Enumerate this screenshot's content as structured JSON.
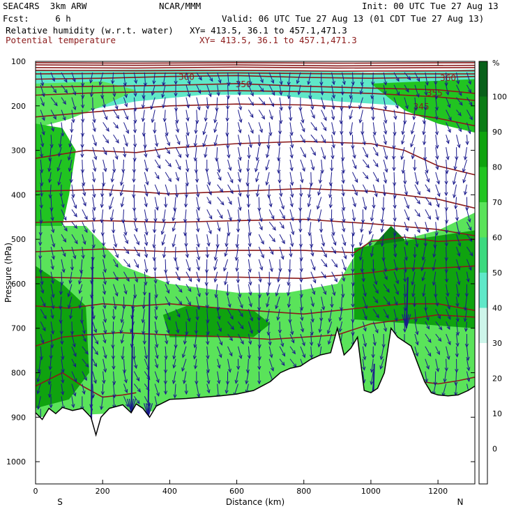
{
  "header": {
    "model": "SEAC4RS  3km ARW",
    "org": "NCAR/MMM",
    "init": "Init: 00 UTC Tue 27 Aug 13",
    "fcst": "Fcst:     6 h",
    "valid": "Valid: 06 UTC Tue 27 Aug 13 (01 CDT Tue 27 Aug 13)",
    "field1": "Relative humidity (w.r.t. water)",
    "field1_xy": "XY= 413.5, 36.1 to 457.1,471.3",
    "field2": "Potential temperature",
    "field2_xy": "XY= 413.5, 36.1 to 457.1,471.3"
  },
  "colors": {
    "theta_contour": "#8b1a1a",
    "wind_vectors": "#1a1a8c",
    "rh_scale": [
      "#ffffff",
      "#ffffff",
      "#ffffff",
      "#ffffff",
      "#cdf5ea",
      "#5fe8c8",
      "#3cd97f",
      "#5ae35a",
      "#21c421",
      "#0fa30f",
      "#0b7c16",
      "#08601a"
    ]
  },
  "chart_data": {
    "type": "heatmap",
    "description_free": true,
    "xlabel": "Distance (km)",
    "ylabel": "Pressure (hPa)",
    "xlim": [
      0,
      1310
    ],
    "ylim": [
      1050,
      100
    ],
    "x_ticks": [
      0,
      200,
      400,
      600,
      800,
      1000,
      1200
    ],
    "y_ticks": [
      100,
      200,
      300,
      400,
      500,
      600,
      700,
      800,
      900,
      1000
    ],
    "x_end_labels": {
      "left": "S",
      "right": "N"
    },
    "colorbar_unit": "%",
    "colorbar_ticks": [
      0,
      10,
      20,
      30,
      40,
      50,
      60,
      70,
      80,
      90,
      100
    ],
    "contour_labels": [
      "360",
      "350",
      "360",
      "355",
      "345"
    ],
    "terrain_pressure": [
      [
        0,
        890
      ],
      [
        20,
        905
      ],
      [
        40,
        880
      ],
      [
        60,
        892
      ],
      [
        80,
        878
      ],
      [
        110,
        885
      ],
      [
        140,
        880
      ],
      [
        165,
        900
      ],
      [
        180,
        940
      ],
      [
        195,
        900
      ],
      [
        220,
        880
      ],
      [
        260,
        872
      ],
      [
        285,
        890
      ],
      [
        300,
        870
      ],
      [
        320,
        880
      ],
      [
        340,
        900
      ],
      [
        360,
        875
      ],
      [
        400,
        860
      ],
      [
        450,
        858
      ],
      [
        500,
        855
      ],
      [
        550,
        852
      ],
      [
        600,
        848
      ],
      [
        650,
        840
      ],
      [
        700,
        820
      ],
      [
        730,
        800
      ],
      [
        760,
        790
      ],
      [
        790,
        785
      ],
      [
        820,
        770
      ],
      [
        850,
        760
      ],
      [
        880,
        755
      ],
      [
        900,
        700
      ],
      [
        920,
        760
      ],
      [
        940,
        745
      ],
      [
        960,
        720
      ],
      [
        980,
        840
      ],
      [
        1000,
        845
      ],
      [
        1020,
        835
      ],
      [
        1040,
        800
      ],
      [
        1060,
        700
      ],
      [
        1080,
        720
      ],
      [
        1100,
        730
      ],
      [
        1120,
        740
      ],
      [
        1140,
        780
      ],
      [
        1160,
        820
      ],
      [
        1180,
        845
      ],
      [
        1200,
        850
      ],
      [
        1230,
        852
      ],
      [
        1260,
        850
      ],
      [
        1290,
        840
      ],
      [
        1310,
        830
      ]
    ],
    "theta_contours": [
      {
        "label": "",
        "points": [
          [
            0,
            103
          ],
          [
            300,
            104
          ],
          [
            600,
            103
          ],
          [
            900,
            104
          ],
          [
            1310,
            103
          ]
        ]
      },
      {
        "label": "",
        "points": [
          [
            0,
            108
          ],
          [
            300,
            109
          ],
          [
            600,
            108
          ],
          [
            900,
            110
          ],
          [
            1310,
            109
          ]
        ]
      },
      {
        "label": "",
        "points": [
          [
            0,
            114
          ],
          [
            300,
            115
          ],
          [
            600,
            113
          ],
          [
            900,
            115
          ],
          [
            1310,
            114
          ]
        ]
      },
      {
        "label": "",
        "points": [
          [
            0,
            120
          ],
          [
            300,
            121
          ],
          [
            600,
            120
          ],
          [
            900,
            122
          ],
          [
            1310,
            121
          ]
        ]
      },
      {
        "label": "",
        "points": [
          [
            0,
            128
          ],
          [
            300,
            127
          ],
          [
            600,
            126
          ],
          [
            900,
            128
          ],
          [
            1310,
            128
          ]
        ]
      },
      {
        "label": "360",
        "points": [
          [
            0,
            140
          ],
          [
            200,
            138
          ],
          [
            400,
            134
          ],
          [
            600,
            132
          ],
          [
            800,
            136
          ],
          [
            1000,
            138
          ],
          [
            1200,
            136
          ],
          [
            1310,
            134
          ]
        ]
      },
      {
        "label": "350",
        "points": [
          [
            0,
            158
          ],
          [
            200,
            156
          ],
          [
            400,
            154
          ],
          [
            600,
            150
          ],
          [
            800,
            156
          ],
          [
            1000,
            160
          ],
          [
            1200,
            164
          ],
          [
            1310,
            172
          ]
        ]
      },
      {
        "label": "355",
        "points": [
          [
            0,
            176
          ],
          [
            200,
            170
          ],
          [
            400,
            168
          ],
          [
            600,
            166
          ],
          [
            800,
            168
          ],
          [
            1000,
            172
          ],
          [
            1200,
            180
          ],
          [
            1310,
            188
          ]
        ]
      },
      {
        "label": "345",
        "points": [
          [
            0,
            225
          ],
          [
            200,
            212
          ],
          [
            400,
            200
          ],
          [
            600,
            196
          ],
          [
            800,
            198
          ],
          [
            1000,
            205
          ],
          [
            1200,
            228
          ],
          [
            1310,
            245
          ]
        ]
      },
      {
        "label": "",
        "points": [
          [
            0,
            318
          ],
          [
            150,
            300
          ],
          [
            300,
            305
          ],
          [
            400,
            295
          ],
          [
            600,
            285
          ],
          [
            800,
            280
          ],
          [
            1000,
            285
          ],
          [
            1100,
            300
          ],
          [
            1200,
            335
          ],
          [
            1310,
            355
          ]
        ]
      },
      {
        "label": "",
        "points": [
          [
            0,
            392
          ],
          [
            200,
            388
          ],
          [
            400,
            398
          ],
          [
            600,
            392
          ],
          [
            800,
            386
          ],
          [
            1000,
            392
          ],
          [
            1200,
            410
          ],
          [
            1310,
            430
          ]
        ]
      },
      {
        "label": "",
        "points": [
          [
            0,
            462
          ],
          [
            200,
            458
          ],
          [
            400,
            462
          ],
          [
            600,
            458
          ],
          [
            800,
            455
          ],
          [
            1000,
            465
          ],
          [
            1200,
            478
          ],
          [
            1310,
            492
          ]
        ]
      },
      {
        "label": "",
        "points": [
          [
            0,
            528
          ],
          [
            200,
            522
          ],
          [
            400,
            528
          ],
          [
            600,
            525
          ],
          [
            800,
            525
          ],
          [
            950,
            530
          ],
          [
            1000,
            505
          ],
          [
            1100,
            495
          ],
          [
            1200,
            505
          ],
          [
            1310,
            500
          ]
        ]
      },
      {
        "label": "",
        "points": [
          [
            0,
            585
          ],
          [
            200,
            588
          ],
          [
            400,
            585
          ],
          [
            600,
            585
          ],
          [
            800,
            588
          ],
          [
            1000,
            575
          ],
          [
            1100,
            565
          ],
          [
            1200,
            565
          ],
          [
            1310,
            560
          ]
        ]
      },
      {
        "label": "",
        "points": [
          [
            0,
            650
          ],
          [
            100,
            655
          ],
          [
            200,
            645
          ],
          [
            300,
            650
          ],
          [
            400,
            645
          ],
          [
            600,
            658
          ],
          [
            800,
            668
          ],
          [
            1000,
            652
          ],
          [
            1100,
            645
          ],
          [
            1200,
            645
          ],
          [
            1310,
            660
          ]
        ]
      },
      {
        "label": "",
        "points": [
          [
            0,
            740
          ],
          [
            80,
            720
          ],
          [
            150,
            715
          ],
          [
            250,
            710
          ],
          [
            400,
            715
          ],
          [
            600,
            720
          ],
          [
            700,
            725
          ],
          [
            800,
            720
          ],
          [
            900,
            715
          ],
          [
            1000,
            690
          ],
          [
            1100,
            680
          ],
          [
            1200,
            670
          ],
          [
            1310,
            675
          ]
        ]
      },
      {
        "label": "",
        "points": [
          [
            0,
            830
          ],
          [
            40,
            815
          ],
          [
            80,
            800
          ],
          [
            140,
            830
          ],
          [
            200,
            855
          ],
          [
            260,
            850
          ],
          [
            300,
            845
          ]
        ]
      },
      {
        "label": "",
        "points": [
          [
            1150,
            820
          ],
          [
            1200,
            825
          ],
          [
            1260,
            818
          ],
          [
            1310,
            810
          ]
        ]
      }
    ],
    "rh_regions": [
      {
        "rh": 45,
        "points": [
          [
            0,
            120
          ],
          [
            400,
            118
          ],
          [
            800,
            120
          ],
          [
            1000,
            125
          ],
          [
            1310,
            118
          ],
          [
            1310,
            220
          ],
          [
            1100,
            200
          ],
          [
            900,
            190
          ],
          [
            700,
            175
          ],
          [
            500,
            175
          ],
          [
            300,
            190
          ],
          [
            150,
            210
          ],
          [
            0,
            240
          ]
        ]
      },
      {
        "rh": 60,
        "points": [
          [
            0,
            150
          ],
          [
            200,
            145
          ],
          [
            300,
            165
          ],
          [
            200,
            200
          ],
          [
            100,
            230
          ],
          [
            0,
            250
          ]
        ]
      },
      {
        "rh": 70,
        "points": [
          [
            1000,
            150
          ],
          [
            1310,
            140
          ],
          [
            1310,
            260
          ],
          [
            1200,
            240
          ],
          [
            1100,
            210
          ]
        ]
      },
      {
        "rh": 75,
        "points": [
          [
            0,
            240
          ],
          [
            80,
            250
          ],
          [
            120,
            300
          ],
          [
            100,
            400
          ],
          [
            80,
            470
          ],
          [
            0,
            470
          ]
        ]
      },
      {
        "rh": 65,
        "points": [
          [
            0,
            470
          ],
          [
            150,
            470
          ],
          [
            260,
            560
          ],
          [
            400,
            600
          ],
          [
            600,
            620
          ],
          [
            750,
            620
          ],
          [
            900,
            600
          ],
          [
            950,
            540
          ],
          [
            1000,
            500
          ],
          [
            1100,
            500
          ],
          [
            1200,
            480
          ],
          [
            1310,
            440
          ],
          [
            1310,
            850
          ],
          [
            0,
            900
          ]
        ]
      },
      {
        "rh": 80,
        "points": [
          [
            0,
            560
          ],
          [
            80,
            600
          ],
          [
            150,
            650
          ],
          [
            160,
            800
          ],
          [
            100,
            860
          ],
          [
            0,
            880
          ]
        ]
      },
      {
        "rh": 85,
        "points": [
          [
            380,
            670
          ],
          [
            450,
            650
          ],
          [
            550,
            655
          ],
          [
            650,
            660
          ],
          [
            700,
            690
          ],
          [
            650,
            720
          ],
          [
            500,
            720
          ],
          [
            400,
            720
          ]
        ]
      },
      {
        "rh": 92,
        "points": [
          [
            1000,
            520
          ],
          [
            1060,
            470
          ],
          [
            1100,
            500
          ],
          [
            1100,
            600
          ],
          [
            1040,
            620
          ],
          [
            980,
            600
          ]
        ]
      },
      {
        "rh": 92,
        "points": [
          [
            1180,
            520
          ],
          [
            1260,
            490
          ],
          [
            1310,
            510
          ],
          [
            1310,
            620
          ],
          [
            1230,
            640
          ],
          [
            1170,
            600
          ]
        ]
      },
      {
        "rh": 80,
        "points": [
          [
            950,
            520
          ],
          [
            1310,
            480
          ],
          [
            1310,
            700
          ],
          [
            950,
            680
          ]
        ]
      }
    ],
    "wind_vectors_note": "",
    "strong_updrafts": [
      {
        "x": 170,
        "p_bottom": 980,
        "p_top": 540
      },
      {
        "x": 290,
        "p_bottom": 890,
        "p_top": 650
      },
      {
        "x": 340,
        "p_bottom": 900,
        "p_top": 620
      },
      {
        "x": 1010,
        "p_bottom": 880,
        "p_top": 780
      },
      {
        "x": 1110,
        "p_bottom": 700,
        "p_top": 585
      }
    ]
  }
}
